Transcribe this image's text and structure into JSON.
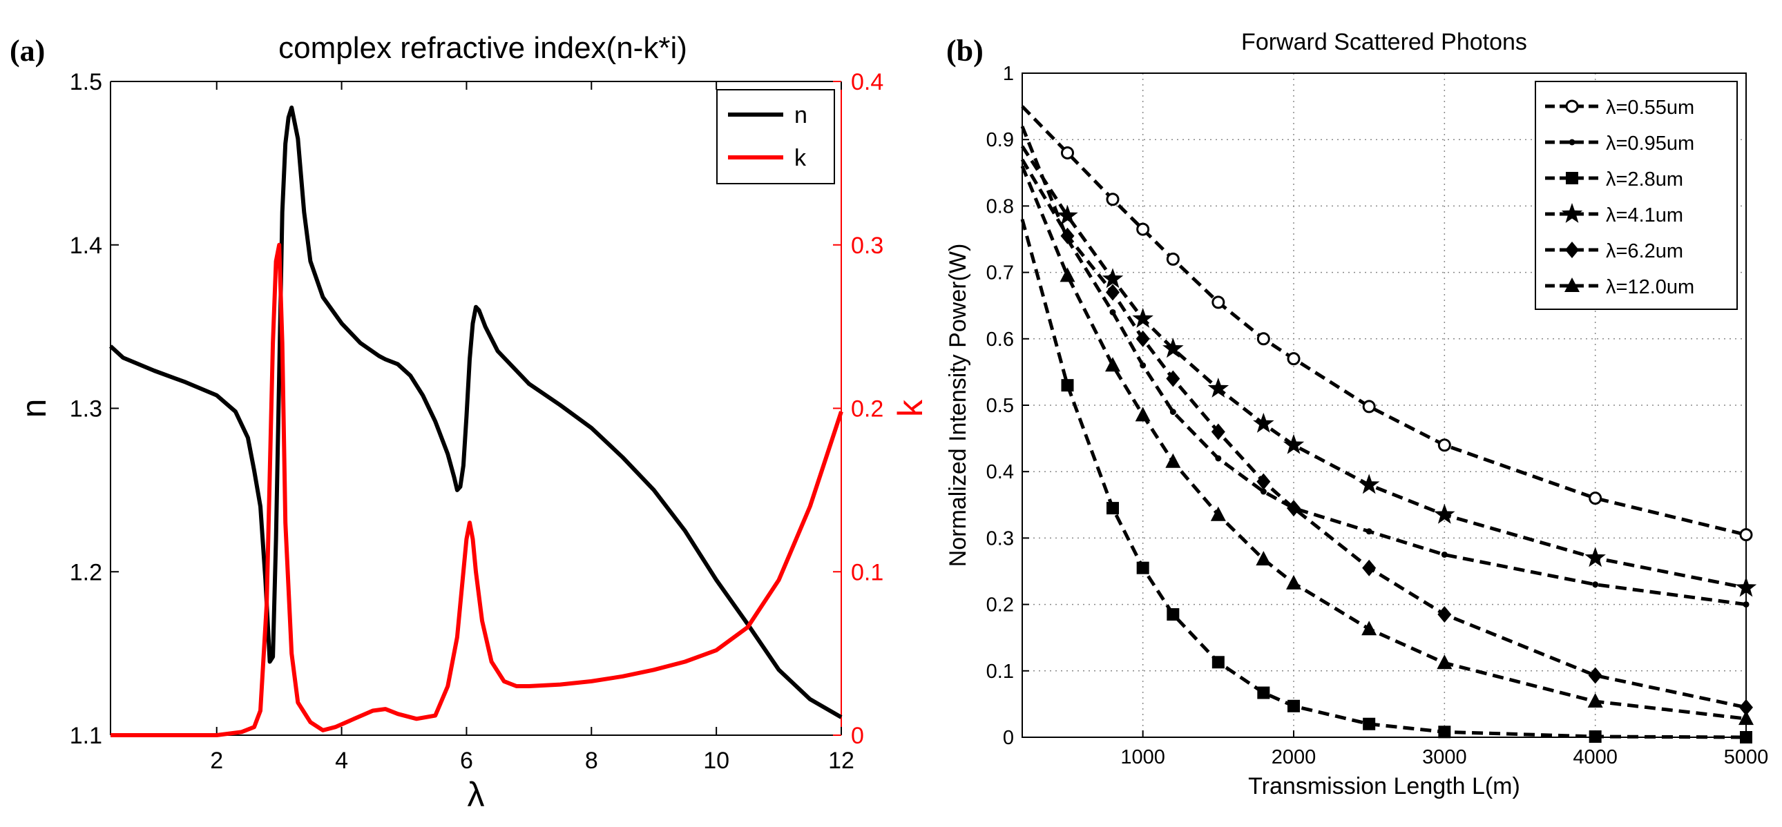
{
  "panels": {
    "a_label": "(a)",
    "b_label": "(b)"
  },
  "chart_data": [
    {
      "type": "line",
      "id": "a",
      "title": "complex refractive index(n-k*i)",
      "xlabel": "λ",
      "ylabel": "n",
      "y2label": "k",
      "xlim": [
        0.3,
        12
      ],
      "ylim": [
        1.1,
        1.5
      ],
      "y2lim": [
        0,
        0.4
      ],
      "xticks": [
        2,
        4,
        6,
        8,
        10,
        12
      ],
      "xtick_labels": [
        "2",
        "4",
        "6",
        "8",
        "10",
        "12"
      ],
      "yticks": [
        1.1,
        1.2,
        1.3,
        1.4,
        1.5
      ],
      "ytick_labels": [
        "1.1",
        "1.2",
        "1.3",
        "1.4",
        "1.5"
      ],
      "y2ticks": [
        0,
        0.1,
        0.2,
        0.3,
        0.4
      ],
      "y2tick_labels": [
        "0",
        "0.1",
        "0.2",
        "0.3",
        "0.4"
      ],
      "grid": false,
      "legend_position": "top-right",
      "colors": {
        "left_axis": "#000000",
        "right_axis": "#ff0000"
      },
      "series": [
        {
          "name": "n",
          "axis": "left",
          "color": "#000000",
          "x": [
            0.3,
            0.5,
            1,
            1.5,
            2,
            2.3,
            2.5,
            2.6,
            2.7,
            2.78,
            2.85,
            2.9,
            2.95,
            3.0,
            3.05,
            3.1,
            3.15,
            3.2,
            3.3,
            3.4,
            3.5,
            3.7,
            4.0,
            4.3,
            4.6,
            4.7,
            4.9,
            5.1,
            5.3,
            5.5,
            5.7,
            5.8,
            5.85,
            5.9,
            5.95,
            6.0,
            6.05,
            6.1,
            6.15,
            6.2,
            6.3,
            6.5,
            7.0,
            7.5,
            8.0,
            8.5,
            9.0,
            9.5,
            10.0,
            10.5,
            11.0,
            11.5,
            12.0
          ],
          "values": [
            1.338,
            1.331,
            1.323,
            1.316,
            1.308,
            1.298,
            1.282,
            1.262,
            1.24,
            1.195,
            1.145,
            1.148,
            1.22,
            1.32,
            1.42,
            1.462,
            1.478,
            1.484,
            1.465,
            1.42,
            1.39,
            1.368,
            1.352,
            1.34,
            1.332,
            1.33,
            1.327,
            1.32,
            1.308,
            1.292,
            1.272,
            1.258,
            1.25,
            1.252,
            1.265,
            1.295,
            1.33,
            1.352,
            1.362,
            1.36,
            1.35,
            1.335,
            1.315,
            1.302,
            1.288,
            1.27,
            1.25,
            1.225,
            1.195,
            1.168,
            1.14,
            1.122,
            1.111
          ]
        },
        {
          "name": "k",
          "axis": "right",
          "color": "#ff0000",
          "x": [
            0.3,
            1,
            2,
            2.4,
            2.6,
            2.7,
            2.8,
            2.85,
            2.9,
            2.95,
            3.0,
            3.05,
            3.1,
            3.2,
            3.3,
            3.5,
            3.7,
            3.9,
            4.2,
            4.5,
            4.7,
            4.9,
            5.2,
            5.5,
            5.7,
            5.85,
            5.95,
            6.0,
            6.05,
            6.1,
            6.15,
            6.25,
            6.4,
            6.6,
            6.8,
            7.0,
            7.5,
            8.0,
            8.5,
            9.0,
            9.5,
            10.0,
            10.5,
            11.0,
            11.5,
            12.0
          ],
          "values": [
            0,
            0,
            0,
            0.002,
            0.005,
            0.015,
            0.08,
            0.16,
            0.24,
            0.29,
            0.3,
            0.24,
            0.13,
            0.05,
            0.02,
            0.008,
            0.003,
            0.005,
            0.01,
            0.015,
            0.016,
            0.013,
            0.01,
            0.012,
            0.03,
            0.06,
            0.1,
            0.12,
            0.13,
            0.12,
            0.1,
            0.07,
            0.045,
            0.033,
            0.03,
            0.03,
            0.031,
            0.033,
            0.036,
            0.04,
            0.045,
            0.052,
            0.066,
            0.095,
            0.14,
            0.198
          ]
        }
      ]
    },
    {
      "type": "line",
      "id": "b",
      "title": "Forward Scattered Photons",
      "xlabel": "Transmission Length L(m)",
      "ylabel": "Normalized Intensity Power(W)",
      "xlim": [
        200,
        5000
      ],
      "ylim": [
        0,
        1
      ],
      "xticks": [
        1000,
        2000,
        3000,
        4000,
        5000
      ],
      "xtick_labels": [
        "1000",
        "2000",
        "3000",
        "4000",
        "5000"
      ],
      "yticks": [
        0,
        0.1,
        0.2,
        0.3,
        0.4,
        0.5,
        0.6,
        0.7,
        0.8,
        0.9,
        1
      ],
      "ytick_labels": [
        "0",
        "0.1",
        "0.2",
        "0.3",
        "0.4",
        "0.5",
        "0.6",
        "0.7",
        "0.8",
        "0.9",
        "1"
      ],
      "grid": true,
      "legend_position": "top-right",
      "line_style": "dashed",
      "series": [
        {
          "name": "λ=0.55um",
          "marker": "circle",
          "x": [
            200,
            500,
            800,
            1000,
            1200,
            1500,
            1800,
            2000,
            2500,
            3000,
            4000,
            5000
          ],
          "values": [
            0.95,
            0.88,
            0.81,
            0.765,
            0.72,
            0.655,
            0.6,
            0.57,
            0.498,
            0.44,
            0.36,
            0.305
          ]
        },
        {
          "name": "λ=0.95um",
          "marker": "point",
          "x": [
            200,
            500,
            800,
            1000,
            1200,
            1500,
            1800,
            2000,
            2500,
            3000,
            4000,
            5000
          ],
          "values": [
            0.92,
            0.75,
            0.64,
            0.56,
            0.49,
            0.42,
            0.37,
            0.345,
            0.31,
            0.275,
            0.23,
            0.2
          ]
        },
        {
          "name": "λ=2.8um",
          "marker": "square",
          "x": [
            200,
            500,
            800,
            1000,
            1200,
            1500,
            1800,
            2000,
            2500,
            3000,
            4000,
            5000
          ],
          "values": [
            0.78,
            0.53,
            0.345,
            0.255,
            0.185,
            0.113,
            0.067,
            0.047,
            0.02,
            0.008,
            0.001,
            0.0
          ]
        },
        {
          "name": "λ=4.1um",
          "marker": "star",
          "x": [
            200,
            500,
            800,
            1000,
            1200,
            1500,
            1800,
            2000,
            2500,
            3000,
            4000,
            5000
          ],
          "values": [
            0.89,
            0.785,
            0.69,
            0.63,
            0.585,
            0.525,
            0.472,
            0.44,
            0.38,
            0.335,
            0.27,
            0.225
          ]
        },
        {
          "name": "λ=6.2um",
          "marker": "diamond",
          "x": [
            200,
            500,
            800,
            1000,
            1200,
            1500,
            1800,
            2000,
            2500,
            3000,
            4000,
            5000
          ],
          "values": [
            0.87,
            0.755,
            0.67,
            0.6,
            0.54,
            0.46,
            0.385,
            0.345,
            0.255,
            0.185,
            0.093,
            0.045
          ]
        },
        {
          "name": "λ=12.0um",
          "marker": "triangle",
          "x": [
            200,
            500,
            800,
            1000,
            1200,
            1500,
            1800,
            2000,
            2500,
            3000,
            4000,
            5000
          ],
          "values": [
            0.86,
            0.695,
            0.56,
            0.485,
            0.415,
            0.335,
            0.268,
            0.232,
            0.163,
            0.112,
            0.054,
            0.028
          ]
        }
      ]
    }
  ]
}
